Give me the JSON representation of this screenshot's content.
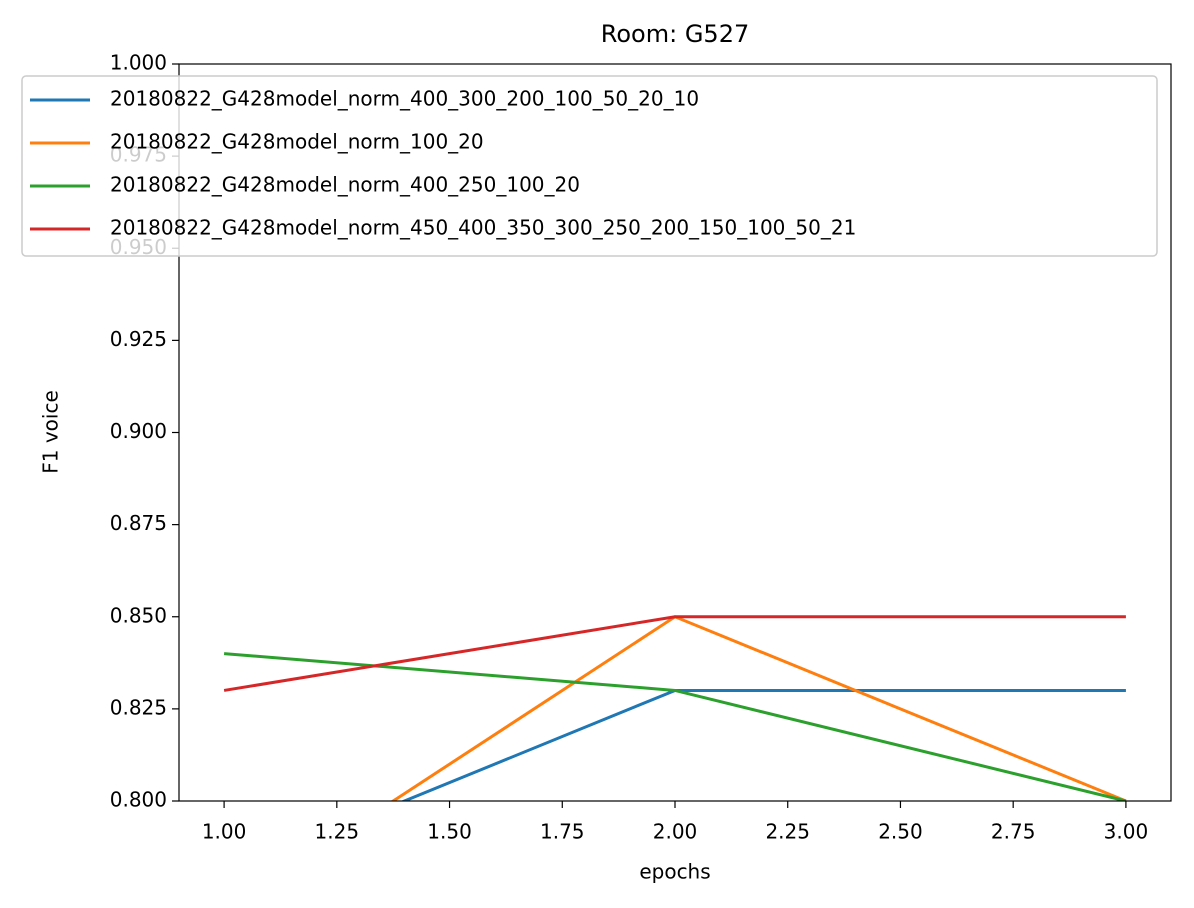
{
  "chart_data": {
    "type": "line",
    "title": "Room: G527",
    "xlabel": "epochs",
    "ylabel": "F1 voice",
    "x": [
      1,
      2,
      3
    ],
    "series": [
      {
        "name": "20180822_G428model_norm_400_300_200_100_50_20_10",
        "color": "#1f77b4",
        "values": [
          0.78,
          0.83,
          0.83
        ]
      },
      {
        "name": "20180822_G428model_norm_100_20",
        "color": "#ff7f0e",
        "values": [
          0.77,
          0.85,
          0.8
        ]
      },
      {
        "name": "20180822_G428model_norm_400_250_100_20",
        "color": "#2ca02c",
        "values": [
          0.84,
          0.83,
          0.8
        ]
      },
      {
        "name": "20180822_G428model_norm_450_400_350_300_250_200_150_100_50_21",
        "color": "#d62728",
        "values": [
          0.83,
          0.85,
          0.85
        ]
      }
    ],
    "xlim": [
      0.9,
      3.1
    ],
    "xticks": [
      {
        "value": 1,
        "label": "1.00"
      },
      {
        "value": 1.25,
        "label": "1.25"
      },
      {
        "value": 1.5,
        "label": "1.50"
      },
      {
        "value": 1.75,
        "label": "1.75"
      },
      {
        "value": 2,
        "label": "2.00"
      },
      {
        "value": 2.25,
        "label": "2.25"
      },
      {
        "value": 2.5,
        "label": "2.50"
      },
      {
        "value": 2.75,
        "label": "2.75"
      },
      {
        "value": 3,
        "label": "3.00"
      }
    ],
    "ylim": [
      0.8,
      1.0
    ],
    "yticks": [
      {
        "value": 0.8,
        "label": "0.800"
      },
      {
        "value": 0.825,
        "label": "0.825"
      },
      {
        "value": 0.85,
        "label": "0.850"
      },
      {
        "value": 0.875,
        "label": "0.875"
      },
      {
        "value": 0.9,
        "label": "0.900"
      },
      {
        "value": 0.925,
        "label": "0.925"
      },
      {
        "value": 0.95,
        "label": "0.950"
      },
      {
        "value": 0.975,
        "label": "0.975"
      },
      {
        "value": 1.0,
        "label": "1.000"
      }
    ],
    "legend": "upper left"
  }
}
